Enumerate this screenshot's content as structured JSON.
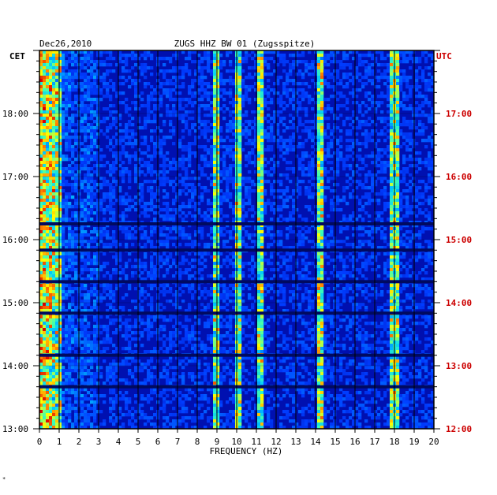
{
  "chart_data": {
    "type": "heatmap",
    "title": "ZUGS HHZ BW 01 (Zugsspitze)",
    "date_label": "Dec26,2010",
    "xlabel": "FREQUENCY (HZ)",
    "left_axis_label": "CET",
    "right_axis_label": "UTC",
    "x_ticks": [
      "0",
      "1",
      "2",
      "3",
      "4",
      "5",
      "6",
      "7",
      "8",
      "9",
      "10",
      "11",
      "12",
      "13",
      "14",
      "15",
      "16",
      "17",
      "18",
      "19",
      "20"
    ],
    "xlim": [
      0,
      20
    ],
    "left_ticks": [
      "18:00",
      "17:00",
      "16:00",
      "15:00",
      "14:00",
      "13:00"
    ],
    "right_ticks": [
      "17:00",
      "16:00",
      "15:00",
      "14:00",
      "13:00",
      "12:00"
    ],
    "grid": true,
    "colors": {
      "left_labels": "#000000",
      "right_labels": "#cc0000",
      "background_low": "#0010b0",
      "high": "#e00000"
    },
    "dark_bands_local_time": [
      "16:15",
      "15:50",
      "15:20",
      "14:50",
      "14:10",
      "13:40"
    ],
    "strong_frequency_lines_hz": [
      0.3,
      9.0,
      10.1,
      11.2,
      14.2,
      18.0
    ]
  },
  "footnote": "*"
}
